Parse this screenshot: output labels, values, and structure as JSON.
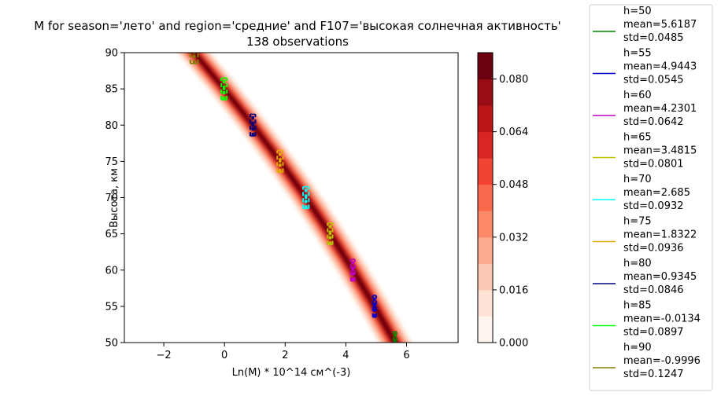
{
  "chart_data": {
    "type": "heatmap",
    "title_line1": "M for season='лето' and region='средние' and F107='высокая солнечная активность'",
    "title_line2": "138 observations",
    "xlabel": "Ln(M) * 10^14 см^(-3)",
    "ylabel": "Высота, км",
    "xlim": [
      -3.3,
      7.7
    ],
    "ylim": [
      50,
      90
    ],
    "x_ticks": [
      -2,
      0,
      2,
      4,
      6
    ],
    "y_ticks": [
      50,
      55,
      60,
      65,
      70,
      75,
      80,
      85,
      90
    ],
    "colorbar": {
      "range": [
        0,
        0.088
      ],
      "ticks": [
        "0.000",
        "0.016",
        "0.032",
        "0.048",
        "0.064",
        "0.080"
      ],
      "tick_values": [
        0,
        0.016,
        0.032,
        0.048,
        0.064,
        0.08
      ],
      "levels": [
        0,
        0.008,
        0.016,
        0.024,
        0.032,
        0.04,
        0.048,
        0.056,
        0.064,
        0.072,
        0.08,
        0.088
      ],
      "colors": [
        "#fff5f0",
        "#fee3d6",
        "#fdc9b4",
        "#fcaa8e",
        "#fc8a6a",
        "#f96a4d",
        "#f14432",
        "#d92523",
        "#bb151a",
        "#9a0c14",
        "#6b010e"
      ]
    },
    "series": [
      {
        "name": "h=50\n mean=5.6187\n std=0.0485",
        "label_lines": [
          "h=50",
          " mean=5.6187",
          " std=0.0485"
        ],
        "h": 50,
        "mean": 5.6187,
        "std": 0.0485,
        "color": "#008000"
      },
      {
        "name": "h=55\n mean=4.9443\n std=0.0545",
        "label_lines": [
          "h=55",
          " mean=4.9443",
          " std=0.0545"
        ],
        "h": 55,
        "mean": 4.9443,
        "std": 0.0545,
        "color": "#0000cd"
      },
      {
        "name": "h=60\n mean=4.2301\n std=0.0642",
        "label_lines": [
          "h=60",
          " mean=4.2301",
          " std=0.0642"
        ],
        "h": 60,
        "mean": 4.2301,
        "std": 0.0642,
        "color": "#c000c0"
      },
      {
        "name": "h=65\n mean=3.4815\n std=0.0801",
        "label_lines": [
          "h=65",
          " mean=3.4815",
          " std=0.0801"
        ],
        "h": 65,
        "mean": 3.4815,
        "std": 0.0801,
        "color": "#bfbf00"
      },
      {
        "name": "h=70\n mean=2.685\n std=0.0932",
        "label_lines": [
          "h=70",
          " mean=2.685",
          " std=0.0932"
        ],
        "h": 70,
        "mean": 2.685,
        "std": 0.0932,
        "color": "#00ffff"
      },
      {
        "name": "h=75\n mean=1.8322\n std=0.0936",
        "label_lines": [
          "h=75",
          " mean=1.8322",
          " std=0.0936"
        ],
        "h": 75,
        "mean": 1.8322,
        "std": 0.0936,
        "color": "#e6a800"
      },
      {
        "name": "h=80\n mean=0.9345\n std=0.0846",
        "label_lines": [
          "h=80",
          " mean=0.9345",
          " std=0.0846"
        ],
        "h": 80,
        "mean": 0.9345,
        "std": 0.0846,
        "color": "#000080"
      },
      {
        "name": "h=85\n mean=-0.0134\n std=0.0897",
        "label_lines": [
          "h=85",
          " mean=-0.0134",
          " std=0.0897"
        ],
        "h": 85,
        "mean": -0.0134,
        "std": 0.0897,
        "color": "#00ff00"
      },
      {
        "name": "h=90\n mean=-0.9996\n std=0.1247",
        "label_lines": [
          "h=90",
          " mean=-0.9996",
          " std=0.1247"
        ],
        "h": 90,
        "mean": -0.9996,
        "std": 0.1247,
        "color": "#808000"
      }
    ],
    "legend_position": "outside-right",
    "grid": false
  }
}
